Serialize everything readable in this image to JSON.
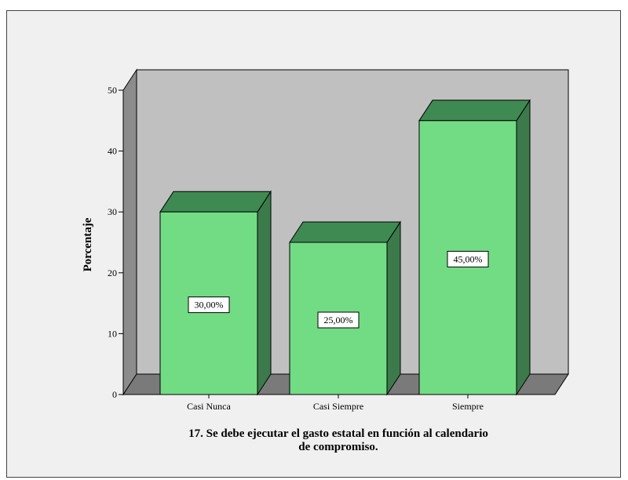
{
  "chart_data": {
    "type": "bar",
    "title_lines": [
      "17. Se debe ejecutar el gasto estatal en función al calendario",
      "de compromiso."
    ],
    "xlabel": "",
    "ylabel": "Porcentaje",
    "ylim": [
      0,
      50
    ],
    "yticks": [
      0,
      10,
      20,
      30,
      40,
      50
    ],
    "categories": [
      "Casi Nunca",
      "Casi Siempre",
      "Siempre"
    ],
    "values": [
      30,
      25,
      45
    ],
    "data_labels": [
      "30,00%",
      "25,00%",
      "45,00%"
    ],
    "grid": false,
    "colors": {
      "bar_front": "#72dc84",
      "bar_top": "#3f8a53",
      "bar_side": "#3c7a4c",
      "wall": "#c0c0c0",
      "floor": "#7a7a7a",
      "frame_bg": "#f0f0f0"
    }
  }
}
